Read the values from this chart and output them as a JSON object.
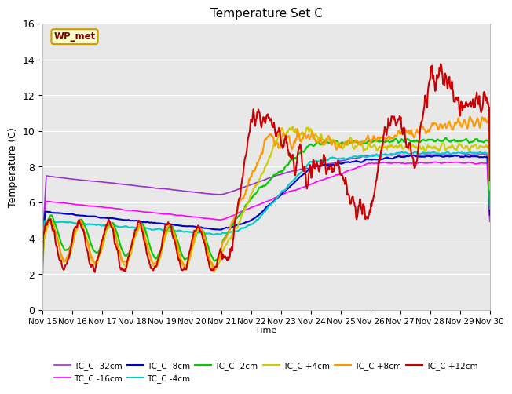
{
  "title": "Temperature Set C",
  "xlabel": "Time",
  "ylabel": "Temperature (C)",
  "ylim": [
    0,
    16
  ],
  "xlim": [
    0,
    15
  ],
  "x_tick_labels": [
    "Nov 15",
    "Nov 16",
    "Nov 17",
    "Nov 18",
    "Nov 19",
    "Nov 20",
    "Nov 21",
    "Nov 22",
    "Nov 23",
    "Nov 24",
    "Nov 25",
    "Nov 26",
    "Nov 27",
    "Nov 28",
    "Nov 29",
    "Nov 30"
  ],
  "annotation": "WP_met",
  "background_color": "#e8e8e8",
  "fig_bg": "#ffffff",
  "grid_color": "#ffffff",
  "series": [
    {
      "label": "TC_C -32cm",
      "color": "#9933cc",
      "lw": 1.2
    },
    {
      "label": "TC_C -16cm",
      "color": "#ff00ff",
      "lw": 1.2
    },
    {
      "label": "TC_C -8cm",
      "color": "#0000cc",
      "lw": 1.5
    },
    {
      "label": "TC_C -4cm",
      "color": "#00cccc",
      "lw": 1.5
    },
    {
      "label": "TC_C -2cm",
      "color": "#00cc00",
      "lw": 1.5
    },
    {
      "label": "TC_C +4cm",
      "color": "#cccc00",
      "lw": 1.5
    },
    {
      "label": "TC_C +8cm",
      "color": "#ff9900",
      "lw": 1.5
    },
    {
      "label": "TC_C +12cm",
      "color": "#cc0000",
      "lw": 1.5
    }
  ],
  "legend_ncol": 6,
  "yticks": [
    0,
    2,
    4,
    6,
    8,
    10,
    12,
    14,
    16
  ],
  "annotation_color": "#800000",
  "annotation_bg": "#ffffcc",
  "annotation_edge": "#cc9900"
}
